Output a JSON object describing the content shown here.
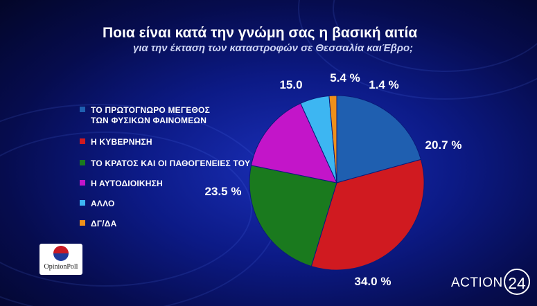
{
  "title": "Ποια είναι κατά την γνώμη σας η βασική αιτία",
  "subtitle": "για την έκταση των καταστροφών σε Θεσσαλία καιΈβρο;",
  "chart_data": {
    "type": "pie",
    "legend_position": "left",
    "slices": [
      {
        "label_line1": "ΤΟ ΠΡΩΤΟΓΝΩΡΟ ΜΕΓΕΘΟΣ",
        "label_line2": "ΤΩΝ ΦΥΣΙΚΩΝ ΦΑΙΝΟΜΕΩΝ",
        "value": 20.7,
        "value_label": "20.7 %",
        "color": "#1f5fb0"
      },
      {
        "label_line1": "Η ΚΥΒΕΡΝΗΣΗ",
        "label_line2": "",
        "value": 34.0,
        "value_label": "34.0 %",
        "color": "#d01a20"
      },
      {
        "label_line1": "ΤΟ ΚΡΑΤΟΣ ΚΑΙ ΟΙ ΠΑΘΟΓΕΝΕΙΕΣ ΤΟΥ",
        "label_line2": "",
        "value": 23.5,
        "value_label": "23.5 %",
        "color": "#1a7a1e"
      },
      {
        "label_line1": "Η ΑΥΤΟΔΙΟΙΚΗΣΗ",
        "label_line2": "",
        "value": 15.0,
        "value_label": "15.0",
        "color": "#c315c9"
      },
      {
        "label_line1": "ΑΛΛΟ",
        "label_line2": "",
        "value": 5.4,
        "value_label": "5.4 %",
        "color": "#3db6f2"
      },
      {
        "label_line1": "ΔΓ/ΔΑ",
        "label_line2": "",
        "value": 1.4,
        "value_label": "1.4 %",
        "color": "#f0901a"
      }
    ]
  },
  "logo": {
    "text": "OpinionPoll"
  },
  "brand": {
    "text": "ACTION",
    "number": "24"
  }
}
